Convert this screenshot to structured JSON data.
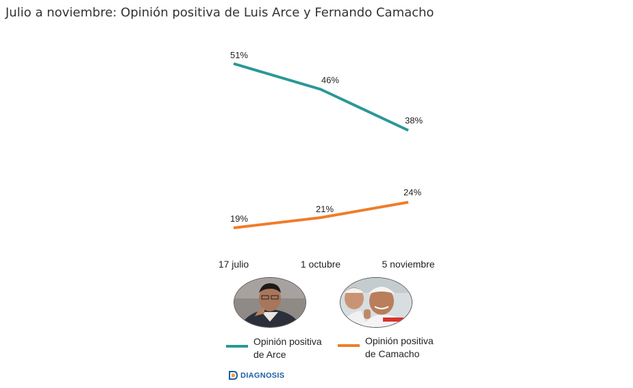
{
  "title": "Julio a noviembre: Opinión positiva de Luis Arce y Fernando Camacho",
  "chart_data": {
    "type": "line",
    "categories": [
      "17 julio",
      "1 octubre",
      "5 noviembre"
    ],
    "series": [
      {
        "name": "Opinión positiva de Arce",
        "values": [
          51,
          46,
          38
        ],
        "labels": [
          "51%",
          "46%",
          "38%"
        ],
        "color": "#2a9896"
      },
      {
        "name": "Opinión positiva de Camacho",
        "values": [
          19,
          21,
          24
        ],
        "labels": [
          "19%",
          "21%",
          "24%"
        ],
        "color": "#ee7d2a"
      }
    ],
    "ylim": [
      15,
      55
    ],
    "grid": false,
    "legend": "bottom"
  },
  "legend": {
    "arce": {
      "line1": "Opinión positiva",
      "line2": "de Arce",
      "color": "#2a9896"
    },
    "camacho": {
      "line1": "Opinión positiva",
      "line2": "de Camacho",
      "color": "#ee7d2a"
    }
  },
  "logo": {
    "text": "DIAGNOSIS",
    "color": "#1b5fa3"
  },
  "photos": [
    "Luis Arce portrait",
    "Fernando Camacho portrait"
  ]
}
